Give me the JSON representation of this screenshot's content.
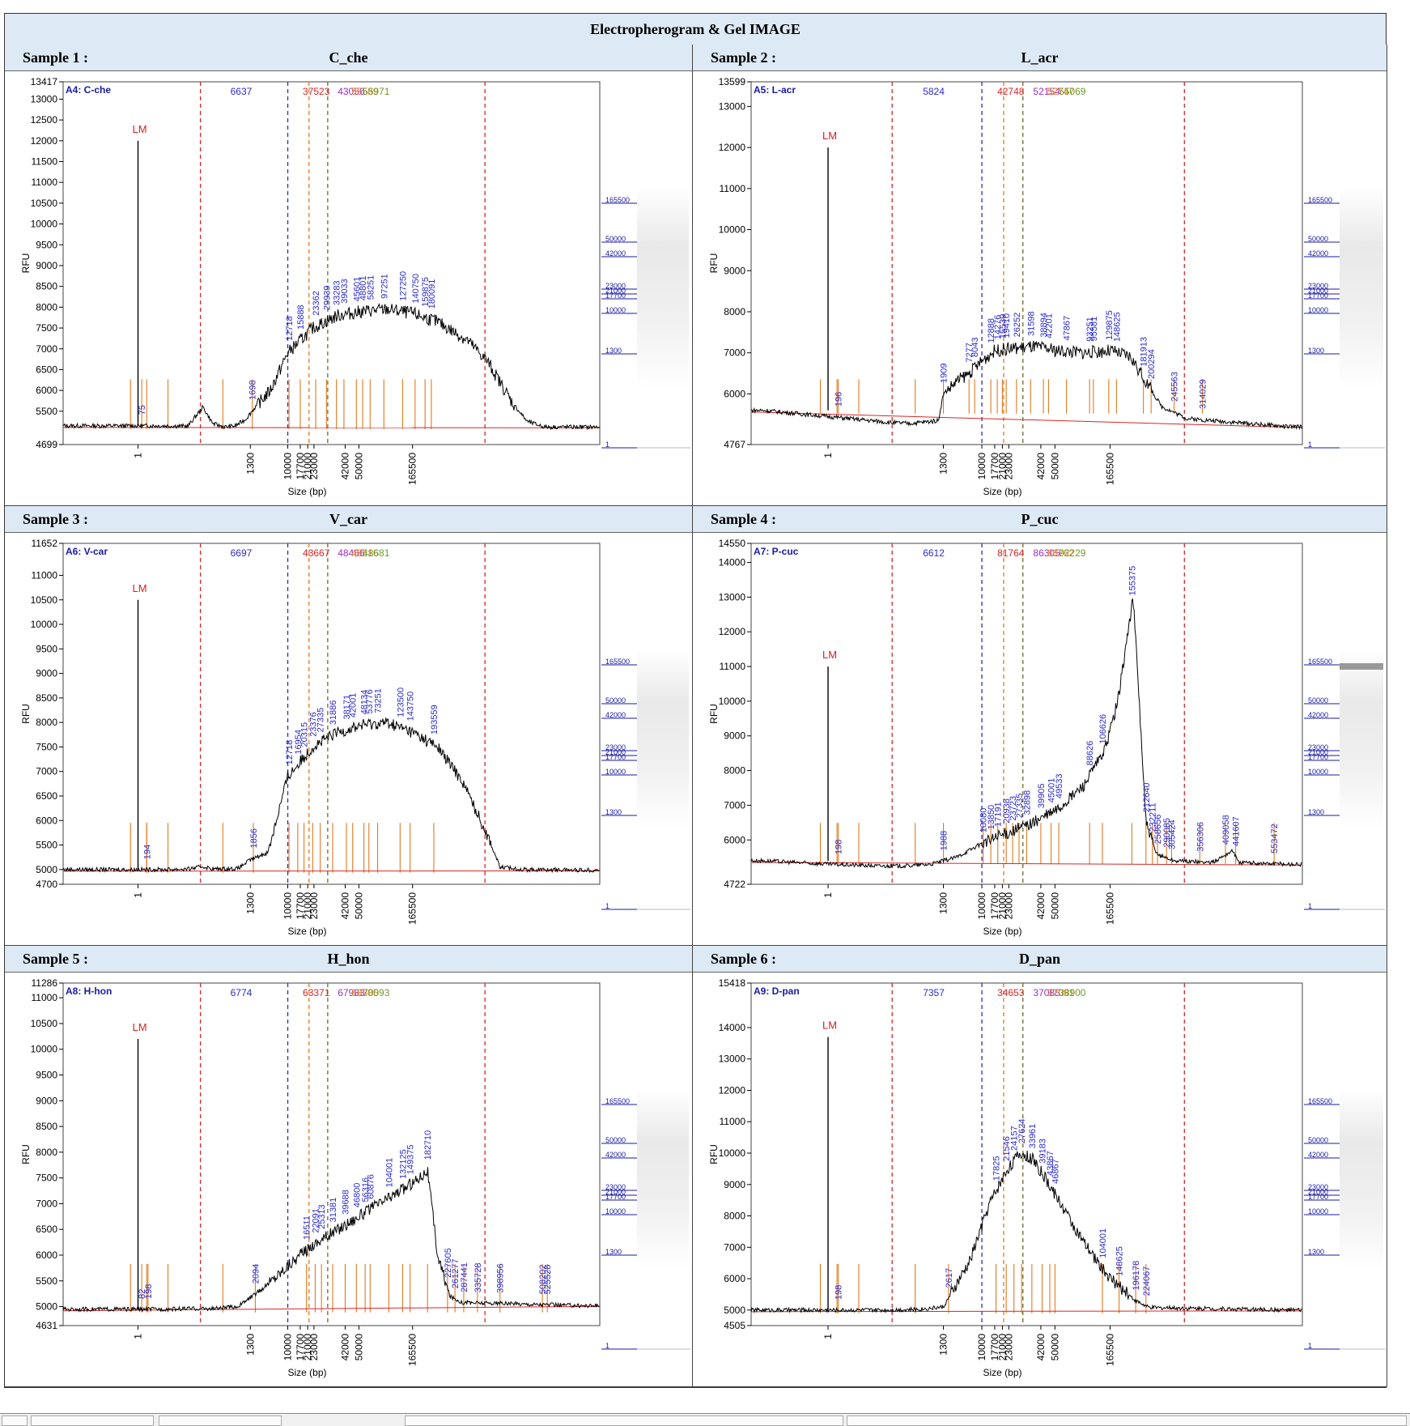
{
  "report": {
    "title": "Electropherogram & Gel IMAGE"
  },
  "ladder_marker_label": "LM",
  "axis": {
    "ylabel": "RFU",
    "xlabel": "Size (bp)",
    "x_ticks": [
      "1",
      "1300",
      "10000",
      "17700",
      "21000",
      "23000",
      "42000",
      "50000",
      "165500"
    ],
    "gel_ladder": [
      "165500",
      "50000",
      "42000",
      "23000",
      "21000",
      "17700",
      "10000",
      "1300",
      "1"
    ]
  },
  "marker_colors": {
    "red": "#d62728",
    "blue": "#2b2bd0",
    "orange": "#e07a20",
    "olive": "#6b6b2a",
    "purple": "#9b30c0",
    "peak": "#e07a20"
  },
  "samples": [
    {
      "label": "Sample 1 :",
      "name": "C_che",
      "well": "A4: C-che",
      "ylim": [
        4699,
        13417
      ],
      "y_ticks": [
        "13417",
        "13000",
        "12500",
        "12000",
        "11500",
        "11000",
        "10500",
        "10000",
        "9500",
        "9000",
        "8500",
        "8000",
        "7500",
        "7000",
        "6500",
        "6000",
        "5500",
        "4699"
      ],
      "top_markers": [
        "6637",
        "37523",
        "43056",
        "55589",
        "55971"
      ],
      "lm_peak": 12000,
      "gel_band": false,
      "trace": [
        [
          0,
          5150
        ],
        [
          1,
          5150
        ],
        [
          2,
          5140
        ],
        [
          2.6,
          5600
        ],
        [
          3,
          5200
        ],
        [
          3.5,
          5120
        ],
        [
          3.9,
          5150
        ],
        [
          4.3,
          5300
        ],
        [
          4.7,
          5600
        ],
        [
          5.3,
          6000
        ],
        [
          6,
          6900
        ],
        [
          7,
          7500
        ],
        [
          8,
          7800
        ],
        [
          9,
          7900
        ],
        [
          10,
          7950
        ],
        [
          11,
          7850
        ],
        [
          12,
          7650
        ],
        [
          13.2,
          7200
        ],
        [
          14,
          6700
        ],
        [
          15,
          5700
        ],
        [
          15.6,
          5250
        ],
        [
          16.3,
          5120
        ],
        [
          18,
          5120
        ]
      ],
      "peak_labels": [
        "75",
        "1698",
        "12718",
        "15888",
        "23362",
        "29939",
        "33283",
        "39033",
        "45601",
        "48801",
        "58251",
        "97251",
        "127250",
        "140750",
        "159875",
        "180091"
      ],
      "peak_positions": [
        0.15,
        4.58,
        6.05,
        6.5,
        7.12,
        7.55,
        7.95,
        8.25,
        8.75,
        9.0,
        9.3,
        9.85,
        10.6,
        11.1,
        11.5,
        11.75
      ]
    },
    {
      "label": "Sample 2 :",
      "name": "L_acr",
      "well": "A5: L-acr",
      "ylim": [
        4767,
        13599
      ],
      "y_ticks": [
        "13599",
        "13000",
        "12000",
        "11000",
        "10000",
        "9000",
        "8000",
        "7000",
        "6000",
        "4767"
      ],
      "top_markers": [
        "5824",
        "42748",
        "52154",
        "52747",
        "55069"
      ],
      "lm_peak": 12000,
      "gel_band": false,
      "trace": [
        [
          -2.5,
          5600
        ],
        [
          0,
          5450
        ],
        [
          2.5,
          5300
        ],
        [
          3.2,
          5280
        ],
        [
          4.3,
          5350
        ],
        [
          4.5,
          6000
        ],
        [
          5,
          6300
        ],
        [
          5.5,
          6500
        ],
        [
          6,
          6800
        ],
        [
          6.5,
          7050
        ],
        [
          7,
          7100
        ],
        [
          8,
          7150
        ],
        [
          9,
          7050
        ],
        [
          10,
          7000
        ],
        [
          11,
          7050
        ],
        [
          11.8,
          6900
        ],
        [
          12.3,
          6400
        ],
        [
          13,
          5700
        ],
        [
          14,
          5400
        ],
        [
          18,
          5200
        ]
      ],
      "peak_labels": [
        "196",
        "1909",
        "7277",
        "8043",
        "12888",
        "14276",
        "15539",
        "19410",
        "26252",
        "31598",
        "38894",
        "42201",
        "47867",
        "93251",
        "95581",
        "129875",
        "148625",
        "181913",
        "200294",
        "245563",
        "314029"
      ],
      "peak_positions": [
        0.4,
        4.5,
        5.5,
        5.72,
        6.35,
        6.6,
        6.8,
        6.95,
        7.35,
        7.9,
        8.4,
        8.6,
        9.3,
        10.2,
        10.35,
        10.95,
        11.25,
        12.3,
        12.6,
        13.5,
        14.6
      ]
    },
    {
      "label": "Sample 3 :",
      "name": "V_car",
      "well": "A6: V-car",
      "ylim": [
        4700,
        11652
      ],
      "y_ticks": [
        "11652",
        "11000",
        "10500",
        "10000",
        "9500",
        "9000",
        "8500",
        "8000",
        "7500",
        "7000",
        "6500",
        "6000",
        "5500",
        "5000",
        "4700"
      ],
      "top_markers": [
        "6697",
        "43667",
        "48466",
        "48516",
        "48681"
      ],
      "lm_peak": 10500,
      "gel_band": false,
      "trace": [
        [
          0,
          5000
        ],
        [
          1,
          5000
        ],
        [
          2,
          5010
        ],
        [
          2.6,
          5060
        ],
        [
          3,
          5010
        ],
        [
          4,
          5020
        ],
        [
          4.5,
          5200
        ],
        [
          5.2,
          5350
        ],
        [
          6,
          6900
        ],
        [
          7,
          7500
        ],
        [
          8,
          7800
        ],
        [
          9,
          7950
        ],
        [
          10,
          8000
        ],
        [
          11,
          7800
        ],
        [
          12,
          7500
        ],
        [
          13,
          6800
        ],
        [
          14,
          5700
        ],
        [
          14.5,
          5050
        ],
        [
          15.5,
          5000
        ],
        [
          18,
          4990
        ]
      ],
      "peak_labels": [
        "194",
        "1856",
        "12718",
        "16954",
        "20315",
        "23376",
        "27335",
        "31886",
        "38171",
        "42001",
        "48134",
        "53776",
        "73251",
        "123500",
        "143750",
        "193559"
      ],
      "peak_positions": [
        0.35,
        4.62,
        6.05,
        6.4,
        6.65,
        7.0,
        7.3,
        7.8,
        8.35,
        8.6,
        9.05,
        9.25,
        9.6,
        10.5,
        10.9,
        11.85
      ]
    },
    {
      "label": "Sample 4 :",
      "name": "P_cuc",
      "well": "A7: P-cuc",
      "ylim": [
        4722,
        14550
      ],
      "y_ticks": [
        "14550",
        "14000",
        "13000",
        "12000",
        "11000",
        "10000",
        "9000",
        "8000",
        "7000",
        "6000",
        "4722"
      ],
      "top_markers": [
        "6612",
        "81764",
        "86305",
        "86762",
        "92229"
      ],
      "lm_peak": 11000,
      "gel_band": true,
      "trace": [
        [
          -2.5,
          5400
        ],
        [
          0,
          5300
        ],
        [
          2,
          5250
        ],
        [
          3,
          5250
        ],
        [
          4,
          5300
        ],
        [
          5,
          5500
        ],
        [
          6,
          5900
        ],
        [
          7,
          6200
        ],
        [
          8,
          6500
        ],
        [
          9,
          6900
        ],
        [
          10,
          7600
        ],
        [
          10.8,
          8600
        ],
        [
          11.3,
          10000
        ],
        [
          11.7,
          12000
        ],
        [
          11.9,
          13000
        ],
        [
          12.1,
          10500
        ],
        [
          12.4,
          6500
        ],
        [
          12.8,
          5600
        ],
        [
          13.5,
          5400
        ],
        [
          15,
          5350
        ],
        [
          15.8,
          5700
        ],
        [
          16,
          5350
        ],
        [
          18,
          5300
        ]
      ],
      "peak_labels": [
        "198",
        "1988",
        "10080",
        "13850",
        "17191",
        "20938",
        "23723",
        "27335",
        "32898",
        "39905",
        "45001",
        "49533",
        "88626",
        "106626",
        "155375",
        "212640",
        "232211",
        "258656",
        "290085",
        "305424",
        "356306",
        "409058",
        "441607",
        "553472"
      ],
      "peak_positions": [
        0.4,
        4.5,
        6.05,
        6.35,
        6.62,
        6.95,
        7.2,
        7.45,
        7.75,
        8.3,
        8.7,
        9.0,
        10.2,
        10.7,
        11.85,
        12.4,
        12.65,
        12.85,
        13.2,
        13.4,
        14.5,
        15.5,
        15.9,
        17.4
      ]
    },
    {
      "label": "Sample 5 :",
      "name": "H_hon",
      "well": "A8: H-hon",
      "ylim": [
        4631,
        11286
      ],
      "y_ticks": [
        "11286",
        "11000",
        "10500",
        "10000",
        "9500",
        "9000",
        "8500",
        "8000",
        "7500",
        "7000",
        "6500",
        "6000",
        "5500",
        "5000",
        "4631"
      ],
      "top_markers": [
        "6774",
        "63371",
        "67983",
        "68385",
        "70093"
      ],
      "lm_peak": 10200,
      "gel_band": false,
      "trace": [
        [
          0,
          4950
        ],
        [
          1,
          4950
        ],
        [
          2,
          4960
        ],
        [
          3,
          4960
        ],
        [
          4,
          5000
        ],
        [
          5,
          5350
        ],
        [
          6,
          5800
        ],
        [
          7,
          6200
        ],
        [
          8,
          6500
        ],
        [
          9,
          6800
        ],
        [
          10,
          7100
        ],
        [
          11,
          7400
        ],
        [
          11.6,
          7650
        ],
        [
          12,
          6000
        ],
        [
          12.5,
          5200
        ],
        [
          13,
          5080
        ],
        [
          18,
          5020
        ]
      ],
      "peak_labels": [
        "82",
        "198",
        "2094",
        "16511",
        "22091",
        "25313",
        "31381",
        "39688",
        "46800",
        "56316",
        "60876",
        "104001",
        "132125",
        "149375",
        "182710",
        "227605",
        "261277",
        "287441",
        "335728",
        "398956",
        "508202",
        "525528"
      ],
      "peak_positions": [
        0.15,
        0.4,
        4.7,
        6.75,
        7.1,
        7.35,
        7.8,
        8.3,
        8.75,
        9.1,
        9.3,
        10.05,
        10.6,
        10.9,
        11.6,
        12.4,
        12.7,
        13.05,
        13.6,
        14.5,
        16.2,
        16.4
      ]
    },
    {
      "label": "Sample 6 :",
      "name": "D_pan",
      "well": "A9: D-pan",
      "ylim": [
        4505,
        15418
      ],
      "y_ticks": [
        "15418",
        "14000",
        "13000",
        "12000",
        "11000",
        "10000",
        "9000",
        "8000",
        "7000",
        "6000",
        "5000",
        "4505"
      ],
      "top_markers": [
        "7357",
        "34653",
        "37085",
        "37091",
        "38900"
      ],
      "lm_peak": 13700,
      "gel_band": false,
      "trace": [
        [
          0,
          5000
        ],
        [
          1,
          5000
        ],
        [
          2,
          5000
        ],
        [
          3.5,
          5020
        ],
        [
          4.5,
          5100
        ],
        [
          5.5,
          6500
        ],
        [
          6.3,
          8400
        ],
        [
          7,
          9500
        ],
        [
          7.5,
          10000
        ],
        [
          8,
          9800
        ],
        [
          9,
          8500
        ],
        [
          10,
          7100
        ],
        [
          11,
          6000
        ],
        [
          12,
          5300
        ],
        [
          12.5,
          5080
        ],
        [
          18,
          5000
        ]
      ],
      "peak_labels": [
        "198",
        "2617",
        "17825",
        "21546",
        "24157",
        "27624",
        "33961",
        "39183",
        "43867",
        "46867",
        "104001",
        "148625",
        "196178",
        "224067"
      ],
      "peak_positions": [
        0.4,
        4.7,
        6.55,
        6.95,
        7.25,
        7.55,
        7.95,
        8.35,
        8.65,
        8.85,
        10.7,
        11.35,
        12.0,
        12.4
      ]
    }
  ]
}
